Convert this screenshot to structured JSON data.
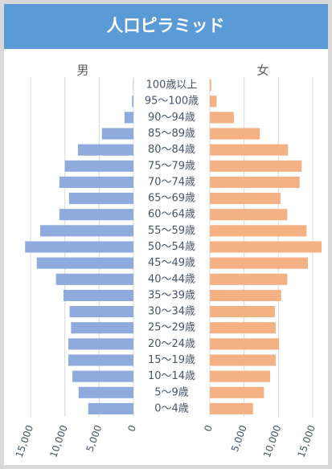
{
  "chart_data": {
    "type": "pyramid",
    "title": "人口ピラミッド",
    "categories": [
      "100歳以上",
      "95〜100歳",
      "90〜94歳",
      "85〜89歳",
      "80〜84歳",
      "75〜79歳",
      "70〜74歳",
      "65〜69歳",
      "60〜64歳",
      "55〜59歳",
      "50〜54歳",
      "45〜49歳",
      "40〜44歳",
      "35〜39歳",
      "30〜34歳",
      "25〜29歳",
      "20〜24歳",
      "15〜19歳",
      "10〜14歳",
      "5〜9歳",
      "0〜4歳"
    ],
    "series": [
      {
        "name": "男",
        "color": "#8faadc",
        "values": [
          50,
          200,
          1300,
          4600,
          8100,
          10000,
          10800,
          9400,
          10800,
          13600,
          15800,
          14100,
          11300,
          10200,
          9300,
          9100,
          9500,
          9500,
          8900,
          8000,
          6600
        ]
      },
      {
        "name": "女",
        "color": "#f4b183",
        "values": [
          200,
          1000,
          3500,
          7300,
          11400,
          13400,
          13100,
          10300,
          11300,
          14100,
          16300,
          14300,
          11300,
          10400,
          9500,
          9600,
          10100,
          9600,
          8800,
          7900,
          6300
        ]
      }
    ],
    "xlim": [
      0,
      16000
    ],
    "xticks": [
      {
        "value": 0,
        "label": "0"
      },
      {
        "value": 5000,
        "label": "5,000"
      },
      {
        "value": 10000,
        "label": "10,000"
      },
      {
        "value": 15000,
        "label": "15,000"
      }
    ],
    "grid": true
  }
}
